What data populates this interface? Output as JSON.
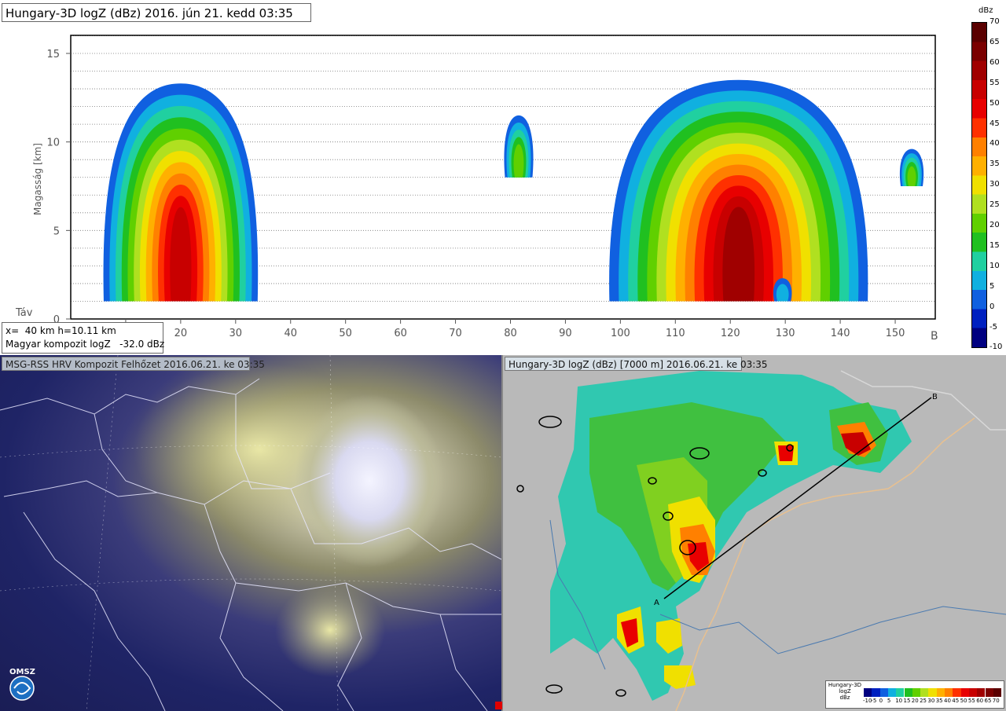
{
  "top_panel": {
    "title": "Hungary-3D logZ (dBz) 2016. jún 21. kedd 03:35",
    "y_axis_label": "Magasság [km]",
    "x_axis_label": "Táv",
    "end_label": "B",
    "readout": {
      "line1": "x=  40 km h=10.11 km",
      "line2": "Magyar kompozit logZ   -32.0 dBz"
    }
  },
  "legend": {
    "title": "dBz",
    "ticks": [
      "70",
      "65",
      "60",
      "55",
      "50",
      "45",
      "40",
      "35",
      "30",
      "25",
      "20",
      "15",
      "10",
      "5",
      "0",
      "-5",
      "-10"
    ],
    "colors": [
      "#5a0000",
      "#7a0000",
      "#a00000",
      "#c80000",
      "#e80000",
      "#ff3000",
      "#ff8000",
      "#ffb000",
      "#f0e000",
      "#b0e020",
      "#60d000",
      "#20c020",
      "#20d0a0",
      "#10b0e0",
      "#1060e0",
      "#0020c0",
      "#000080"
    ]
  },
  "chart_data": {
    "type": "heatmap",
    "title": "Hungary-3D logZ (dBz) 2016. jún 21. kedd 03:35",
    "xlabel": "Táv",
    "ylabel": "Magasság [km]",
    "xlim": [
      0,
      157
    ],
    "ylim": [
      0,
      16
    ],
    "xticks": [
      10,
      20,
      30,
      40,
      50,
      60,
      70,
      80,
      90,
      100,
      110,
      120,
      130,
      140,
      150
    ],
    "yticks": [
      0,
      5,
      10,
      15
    ],
    "grid": "horizontal dotted every 1 km",
    "cells": [
      {
        "name": "cell-left",
        "x_range": [
          6,
          34
        ],
        "z_top_km": 13.3,
        "z_base_km": 1,
        "max_dbz": 55
      },
      {
        "name": "cell-mid",
        "x_range": [
          79,
          84
        ],
        "z_top_km": 11.5,
        "z_base_km": 8,
        "max_dbz": 20
      },
      {
        "name": "cell-right",
        "x_range": [
          98,
          145
        ],
        "z_top_km": 13.5,
        "z_base_km": 1,
        "max_dbz": 60
      },
      {
        "name": "cell-small-bottom",
        "x_range": [
          128,
          131
        ],
        "z_top_km": 2.3,
        "z_base_km": 1,
        "max_dbz": 5
      },
      {
        "name": "cell-far-right",
        "x_range": [
          151,
          155
        ],
        "z_top_km": 9.6,
        "z_base_km": 7.5,
        "max_dbz": 20
      }
    ]
  },
  "sat_panel": {
    "header": "MSG-RSS HRV Kompozit Felhőzet 2016.06.21. ke 03:35",
    "logo_text": "OMSZ"
  },
  "radar_panel": {
    "header": "Hungary-3D logZ (dBz) [7000 m] 2016.06.21. ke 03:35",
    "point_a": "A",
    "point_b": "B",
    "legend_title": "Hungary-3D\nlogZ\ndBz",
    "legend_labels": [
      "-10",
      "-5",
      "0",
      "5",
      "10",
      "15",
      "20",
      "25",
      "30",
      "35",
      "40",
      "45",
      "50",
      "55",
      "60",
      "65",
      "70"
    ]
  }
}
